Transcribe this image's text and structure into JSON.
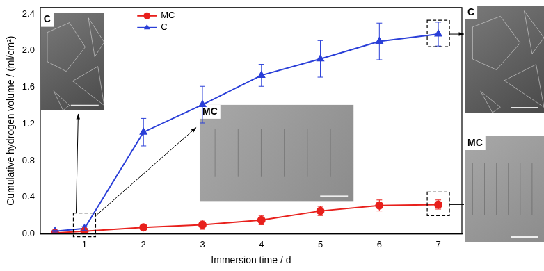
{
  "chart_data": {
    "type": "line",
    "x_label": "Immersion time / d",
    "y_label": "Cumulative hydrogen volume / (ml/cm²)",
    "annotations": [
      "C",
      "MC",
      "C",
      "MC"
    ],
    "x": [
      0.5,
      1,
      2,
      3,
      4,
      5,
      6,
      7
    ],
    "series": [
      {
        "name": "MC",
        "color": "#e8201c",
        "marker": "circle",
        "values": [
          0.01,
          0.03,
          0.07,
          0.1,
          0.15,
          0.25,
          0.31,
          0.32
        ],
        "errors": [
          0.005,
          0.01,
          0.02,
          0.05,
          0.05,
          0.05,
          0.06,
          0.05
        ]
      },
      {
        "name": "C",
        "color": "#2a3fd8",
        "marker": "triangle",
        "values": [
          0.03,
          0.06,
          1.11,
          1.41,
          1.73,
          1.91,
          2.1,
          2.18
        ],
        "errors": [
          0.01,
          0.02,
          0.15,
          0.2,
          0.12,
          0.2,
          0.2,
          0.13
        ]
      }
    ],
    "xlim": [
      0.25,
      7.4
    ],
    "xticks": [
      1,
      2,
      3,
      4,
      5,
      6,
      7
    ],
    "ylim": [
      0,
      2.47
    ],
    "yticks": [
      {
        "value": 0,
        "label": "0.0"
      },
      0.4,
      0.8,
      1.2,
      1.6,
      {
        "value": 2,
        "label": "2.0"
      },
      2.4
    ],
    "grid": false,
    "legend": "top"
  }
}
